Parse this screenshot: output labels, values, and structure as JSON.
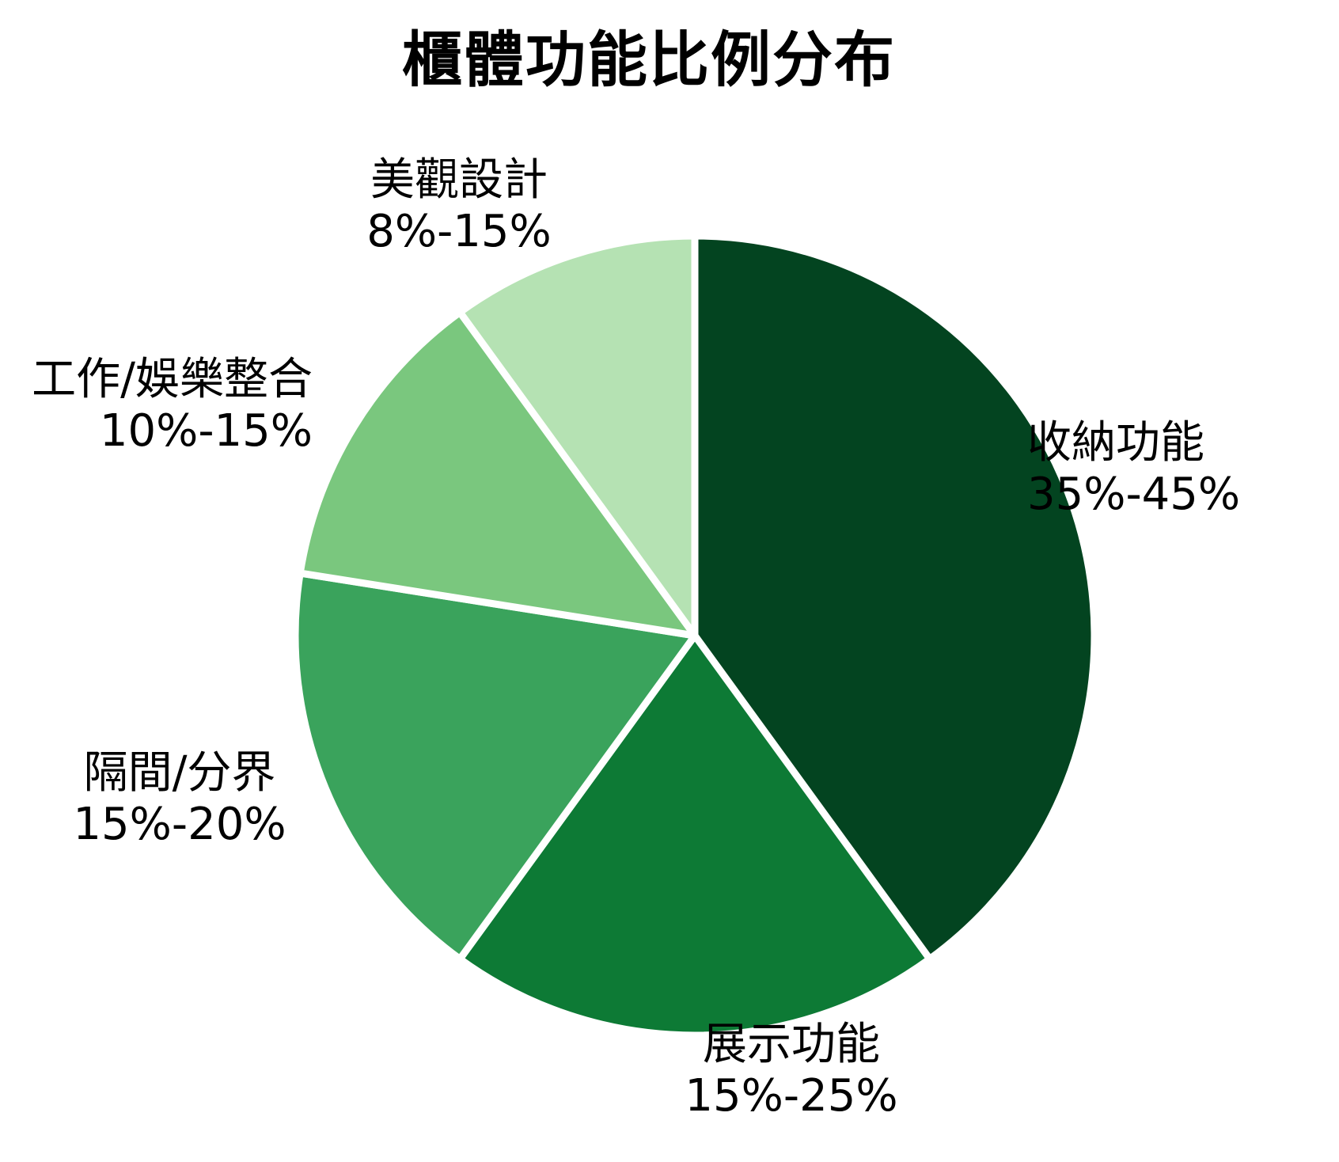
{
  "title": "櫃體功能比例分布",
  "chart_data": {
    "type": "pie",
    "title": "櫃體功能比例分布",
    "start_angle_deg": 0,
    "direction": "clockwise",
    "separator_color": "#ffffff",
    "legend_position": "none",
    "labels_outside": true,
    "slices": [
      {
        "label": "收納功能",
        "range": "35%-45%",
        "value": 40,
        "color": "#034420"
      },
      {
        "label": "展示功能",
        "range": "15%-25%",
        "value": 20,
        "color": "#0d7a35"
      },
      {
        "label": "隔間/分界",
        "range": "15%-20%",
        "value": 17.5,
        "color": "#3aa35c"
      },
      {
        "label": "工作/娛樂整合",
        "range": "10%-15%",
        "value": 12.5,
        "color": "#7ac77e"
      },
      {
        "label": "美觀設計",
        "range": "8%-15%",
        "value": 10,
        "color": "#b5e2b3"
      }
    ]
  }
}
